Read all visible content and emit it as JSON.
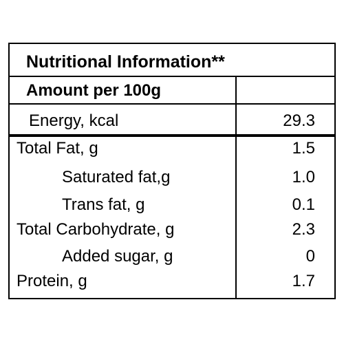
{
  "header": {
    "title": "Nutritional Information**",
    "subtitle": "Amount per 100g"
  },
  "table": {
    "rows": [
      [
        "Energy, kcal",
        "29.3"
      ],
      [
        "Total Fat, g",
        "1.5"
      ],
      [
        "Saturated fat,g",
        "1.0"
      ],
      [
        "Trans fat, g",
        "0.1"
      ],
      [
        "Total Carbohydrate, g",
        "2.3"
      ],
      [
        "Added sugar, g",
        "0"
      ],
      [
        "Protein, g",
        "1.7"
      ]
    ]
  }
}
